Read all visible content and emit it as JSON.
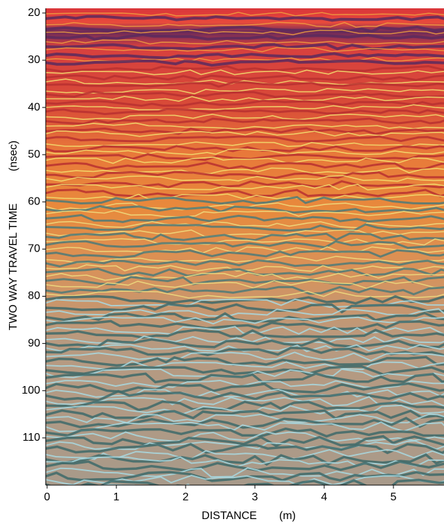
{
  "chart_data": {
    "type": "image",
    "xlabel": "DISTANCE",
    "xunit": "(m)",
    "ylabel": "TWO WAY TRAVEL TIME",
    "yunit": "(nsec)",
    "xlim": [
      0,
      5.73
    ],
    "xticks": [
      0,
      1,
      2,
      3,
      4,
      5
    ],
    "ylim": [
      19,
      120
    ],
    "yticks": [
      20,
      30,
      40,
      50,
      60,
      70,
      80,
      90,
      100,
      110
    ],
    "y_inverted": true
  }
}
